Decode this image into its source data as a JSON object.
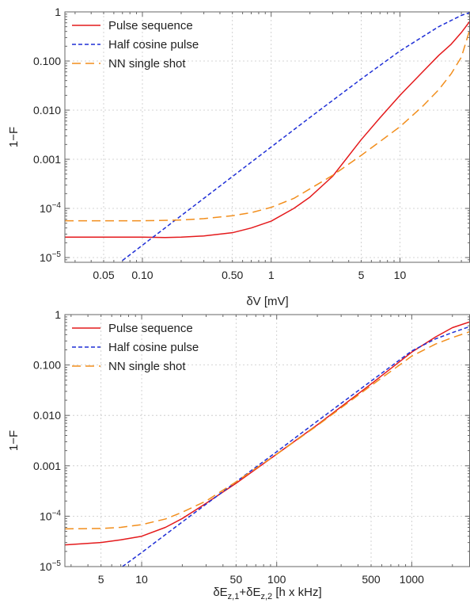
{
  "chart_data": [
    {
      "type": "line",
      "xlabel": "δV [mV]",
      "ylabel": "1−F",
      "xscale": "log",
      "yscale": "log",
      "xlim": [
        0.025,
        35
      ],
      "ylim": [
        8e-06,
        1
      ],
      "grid": true,
      "legend": "top-left",
      "xticks": [
        {
          "v": 0.05,
          "label": "0.05"
        },
        {
          "v": 0.1,
          "label": "0.10"
        },
        {
          "v": 0.5,
          "label": "0.50"
        },
        {
          "v": 1,
          "label": "1"
        },
        {
          "v": 5,
          "label": "5"
        },
        {
          "v": 10,
          "label": "10"
        }
      ],
      "yticks": [
        {
          "v": 1e-05,
          "label": "10",
          "sup": "−5"
        },
        {
          "v": 0.0001,
          "label": "10",
          "sup": "−4"
        },
        {
          "v": 0.001,
          "label": "0.001"
        },
        {
          "v": 0.01,
          "label": "0.010"
        },
        {
          "v": 0.1,
          "label": "0.100"
        },
        {
          "v": 1,
          "label": "1"
        }
      ],
      "series": [
        {
          "name": "Pulse sequence",
          "color": "#e41a1c",
          "dash": "solid",
          "x": [
            0.025,
            0.05,
            0.1,
            0.15,
            0.2,
            0.3,
            0.5,
            0.7,
            1,
            1.5,
            2,
            3,
            5,
            7,
            10,
            15,
            20,
            25,
            30,
            35
          ],
          "y": [
            2.6e-05,
            2.6e-05,
            2.6e-05,
            2.55e-05,
            2.6e-05,
            2.75e-05,
            3.2e-05,
            4e-05,
            5.5e-05,
            0.0001,
            0.00017,
            0.00045,
            0.0025,
            0.007,
            0.02,
            0.06,
            0.13,
            0.22,
            0.38,
            0.65
          ]
        },
        {
          "name": "Half cosine pulse",
          "color": "#1f2fd6",
          "dash": "short",
          "x": [
            0.07,
            0.1,
            0.2,
            0.5,
            1,
            2,
            5,
            10,
            20,
            30,
            35
          ],
          "y": [
            8.7e-06,
            1.78e-05,
            7.12e-05,
            0.000445,
            0.00178,
            0.0071,
            0.043,
            0.16,
            0.5,
            0.85,
            0.97
          ]
        },
        {
          "name": "NN single shot",
          "color": "#f28e1c",
          "dash": "long",
          "x": [
            0.025,
            0.1,
            0.2,
            0.3,
            0.5,
            0.7,
            1,
            1.5,
            2,
            3,
            5,
            7,
            10,
            15,
            20,
            25,
            30,
            35
          ],
          "y": [
            5.6e-05,
            5.6e-05,
            5.8e-05,
            6.2e-05,
            7.1e-05,
            8.2e-05,
            0.000105,
            0.00016,
            0.00025,
            0.00047,
            0.0012,
            0.0023,
            0.0046,
            0.012,
            0.026,
            0.055,
            0.12,
            0.45
          ]
        }
      ]
    },
    {
      "type": "line",
      "xlabel": "δE",
      "xlabel_parts": [
        {
          "t": "δE",
          "sub": false
        },
        {
          "t": "z,1",
          "sub": true
        },
        {
          "t": "+δE",
          "sub": false
        },
        {
          "t": "z,2",
          "sub": true
        },
        {
          "t": " [h x kHz]",
          "sub": false
        }
      ],
      "ylabel": "1−F",
      "xscale": "log",
      "yscale": "log",
      "xlim": [
        2.7,
        2700
      ],
      "ylim": [
        1e-05,
        1
      ],
      "grid": true,
      "legend": "top-left",
      "xticks": [
        {
          "v": 5,
          "label": "5"
        },
        {
          "v": 10,
          "label": "10"
        },
        {
          "v": 50,
          "label": "50"
        },
        {
          "v": 100,
          "label": "100"
        },
        {
          "v": 500,
          "label": "500"
        },
        {
          "v": 1000,
          "label": "1000"
        }
      ],
      "yticks": [
        {
          "v": 1e-05,
          "label": "10",
          "sup": "−5"
        },
        {
          "v": 0.0001,
          "label": "10",
          "sup": "−4"
        },
        {
          "v": 0.001,
          "label": "0.001"
        },
        {
          "v": 0.01,
          "label": "0.010"
        },
        {
          "v": 0.1,
          "label": "0.100"
        },
        {
          "v": 1,
          "label": "1"
        }
      ],
      "series": [
        {
          "name": "Pulse sequence",
          "color": "#e41a1c",
          "dash": "solid",
          "x": [
            2.7,
            5,
            7,
            10,
            15,
            20,
            30,
            50,
            100,
            200,
            500,
            700,
            1000,
            1500,
            2000,
            2700
          ],
          "y": [
            2.7e-05,
            3e-05,
            3.4e-05,
            4e-05,
            6e-05,
            9e-05,
            0.00018,
            0.00045,
            0.0017,
            0.0065,
            0.042,
            0.085,
            0.18,
            0.36,
            0.55,
            0.72
          ]
        },
        {
          "name": "Half cosine pulse",
          "color": "#1f2fd6",
          "dash": "short",
          "x": [
            7.2,
            10,
            20,
            50,
            100,
            200,
            500,
            1000,
            1500,
            2000,
            2700
          ],
          "y": [
            1e-05,
            1.9e-05,
            7.7e-05,
            0.00048,
            0.0019,
            0.0077,
            0.048,
            0.19,
            0.33,
            0.44,
            0.58
          ]
        },
        {
          "name": "NN single shot",
          "color": "#f28e1c",
          "dash": "long",
          "x": [
            2.7,
            5,
            7,
            10,
            15,
            20,
            30,
            50,
            100,
            200,
            500,
            700,
            1000,
            1500,
            2000,
            2700
          ],
          "y": [
            5.6e-05,
            5.7e-05,
            6e-05,
            6.8e-05,
            8.8e-05,
            0.00012,
            0.0002,
            0.00048,
            0.0017,
            0.0063,
            0.039,
            0.075,
            0.15,
            0.26,
            0.35,
            0.46
          ]
        }
      ]
    }
  ]
}
